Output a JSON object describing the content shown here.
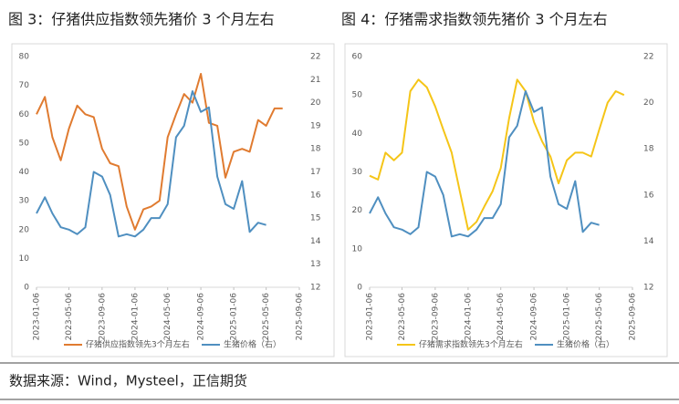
{
  "chart_data": [
    {
      "type": "line",
      "title": "图 3：仔猪供应指数领先猪价 3 个月左右",
      "x": [
        "2023-01-06",
        "2023-02-06",
        "2023-03-06",
        "2023-04-06",
        "2023-05-06",
        "2023-06-06",
        "2023-07-06",
        "2023-08-06",
        "2023-09-06",
        "2023-10-06",
        "2023-11-06",
        "2023-12-06",
        "2024-01-06",
        "2024-02-06",
        "2024-03-06",
        "2024-04-06",
        "2024-05-06",
        "2024-06-06",
        "2024-07-06",
        "2024-08-06",
        "2024-09-06",
        "2024-10-06",
        "2024-11-06",
        "2024-12-06",
        "2025-01-06",
        "2025-02-06",
        "2025-03-06",
        "2025-04-06",
        "2025-05-06",
        "2025-06-06",
        "2025-07-06"
      ],
      "series": [
        {
          "name": "仔猪供应指数领先3个月左右",
          "color": "#e07b30",
          "values": [
            60,
            66,
            52,
            44,
            55,
            63,
            60,
            59,
            48,
            43,
            42,
            28,
            20,
            27,
            28,
            30,
            52,
            60,
            67,
            64,
            74,
            57,
            56,
            38,
            47,
            48,
            47,
            58,
            56,
            62,
            62
          ]
        },
        {
          "name": "生猪价格（右）",
          "color": "#4f8fc0",
          "axis": "y2",
          "values": [
            15.2,
            15.9,
            15.2,
            14.6,
            14.5,
            14.3,
            14.6,
            17.0,
            16.8,
            16.0,
            14.2,
            14.3,
            14.2,
            14.5,
            15.0,
            15.0,
            15.6,
            18.5,
            19.0,
            20.5,
            19.6,
            19.8,
            16.8,
            15.6,
            15.4,
            16.6,
            14.4,
            14.8,
            14.7,
            null,
            null
          ]
        }
      ],
      "xlim": [
        "2023-01-06",
        "2025-09-06"
      ],
      "xticks": [
        "2023-01-06",
        "2023-05-06",
        "2023-09-06",
        "2024-01-06",
        "2024-05-06",
        "2024-09-06",
        "2025-01-06",
        "2025-05-06",
        "2025-09-06"
      ],
      "ylim": [
        0,
        80
      ],
      "yticks": [
        0,
        10,
        20,
        30,
        40,
        50,
        60,
        70,
        80
      ],
      "y2lim": [
        12,
        22
      ],
      "y2ticks": [
        12,
        13,
        14,
        15,
        16,
        17,
        18,
        19,
        20,
        21,
        22
      ],
      "grid": false
    },
    {
      "type": "line",
      "title": "图 4：仔猪需求指数领先猪价 3 个月左右",
      "x": [
        "2023-01-06",
        "2023-02-06",
        "2023-03-06",
        "2023-04-06",
        "2023-05-06",
        "2023-06-06",
        "2023-07-06",
        "2023-08-06",
        "2023-09-06",
        "2023-10-06",
        "2023-11-06",
        "2023-12-06",
        "2024-01-06",
        "2024-02-06",
        "2024-03-06",
        "2024-04-06",
        "2024-05-06",
        "2024-06-06",
        "2024-07-06",
        "2024-08-06",
        "2024-09-06",
        "2024-10-06",
        "2024-11-06",
        "2024-12-06",
        "2025-01-06",
        "2025-02-06",
        "2025-03-06",
        "2025-04-06",
        "2025-05-06",
        "2025-06-06",
        "2025-07-06",
        "2025-08-06"
      ],
      "series": [
        {
          "name": "仔猪需求指数领先3个月左右",
          "color": "#f5c518",
          "values": [
            29,
            28,
            35,
            33,
            35,
            51,
            54,
            52,
            47,
            41,
            35,
            25,
            15,
            17,
            21,
            25,
            31,
            44,
            54,
            51,
            43,
            38,
            34,
            27,
            33,
            35,
            35,
            34,
            41,
            48,
            51,
            50
          ]
        },
        {
          "name": "生猪价格（右）",
          "color": "#4f8fc0",
          "axis": "y2",
          "values": [
            15.2,
            15.9,
            15.2,
            14.6,
            14.5,
            14.3,
            14.6,
            17.0,
            16.8,
            16.0,
            14.2,
            14.3,
            14.2,
            14.5,
            15.0,
            15.0,
            15.6,
            18.5,
            19.0,
            20.5,
            19.6,
            19.8,
            16.8,
            15.6,
            15.4,
            16.6,
            14.4,
            14.8,
            14.7,
            null,
            null,
            null
          ]
        }
      ],
      "xlim": [
        "2023-01-06",
        "2025-09-06"
      ],
      "xticks": [
        "2023-01-06",
        "2023-05-06",
        "2023-09-06",
        "2024-01-06",
        "2024-05-06",
        "2024-09-06",
        "2025-01-06",
        "2025-05-06",
        "2025-09-06"
      ],
      "ylim": [
        0,
        60
      ],
      "yticks": [
        0,
        10,
        20,
        30,
        40,
        50,
        60
      ],
      "y2lim": [
        12,
        22
      ],
      "y2ticks": [
        12,
        14,
        16,
        18,
        20,
        22
      ],
      "grid": false
    }
  ],
  "source": "数据来源：Wind，Mysteel，正信期货"
}
